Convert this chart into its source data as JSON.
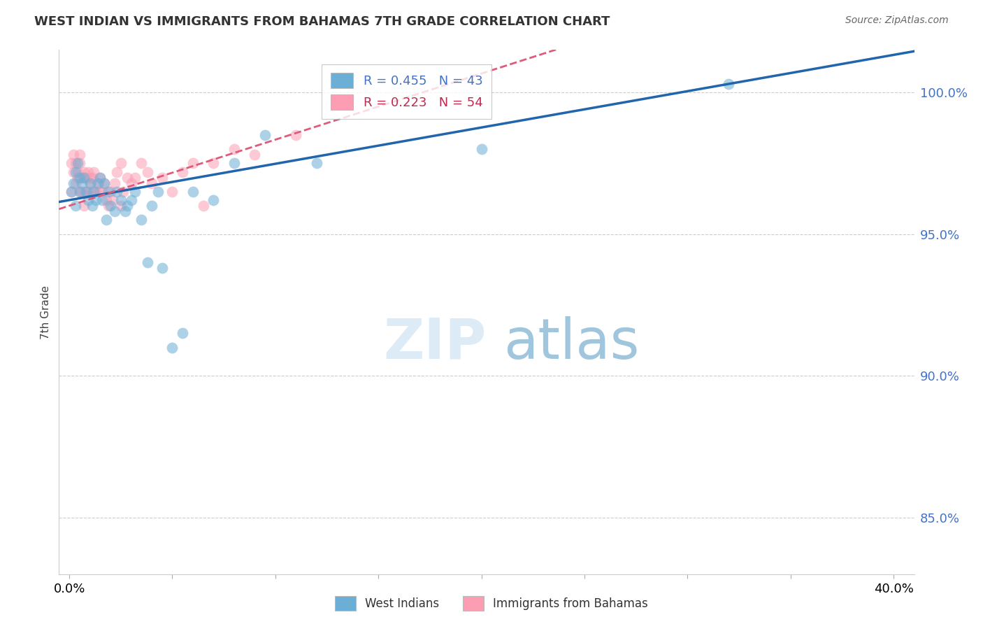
{
  "title": "WEST INDIAN VS IMMIGRANTS FROM BAHAMAS 7TH GRADE CORRELATION CHART",
  "source": "Source: ZipAtlas.com",
  "ylabel": "7th Grade",
  "yticks": [
    85.0,
    90.0,
    95.0,
    100.0
  ],
  "ytick_labels": [
    "85.0%",
    "90.0%",
    "95.0%",
    "100.0%"
  ],
  "xticks": [
    0.0,
    0.05,
    0.1,
    0.15,
    0.2,
    0.25,
    0.3,
    0.35,
    0.4
  ],
  "xlim": [
    -0.005,
    0.41
  ],
  "ylim": [
    83.0,
    101.5
  ],
  "legend_blue_label": "R = 0.455   N = 43",
  "legend_pink_label": "R = 0.223   N = 54",
  "blue_color": "#6baed6",
  "pink_color": "#fc9db3",
  "trendline_blue_color": "#2166ac",
  "trendline_pink_color": "#e05a7a",
  "west_indians_x": [
    0.001,
    0.002,
    0.003,
    0.003,
    0.004,
    0.005,
    0.005,
    0.006,
    0.007,
    0.008,
    0.009,
    0.01,
    0.011,
    0.012,
    0.013,
    0.014,
    0.015,
    0.016,
    0.017,
    0.018,
    0.019,
    0.02,
    0.022,
    0.023,
    0.025,
    0.027,
    0.028,
    0.03,
    0.032,
    0.035,
    0.038,
    0.04,
    0.043,
    0.045,
    0.05,
    0.055,
    0.06,
    0.07,
    0.08,
    0.095,
    0.12,
    0.2,
    0.32
  ],
  "west_indians_y": [
    96.5,
    96.8,
    97.2,
    96.0,
    97.5,
    96.5,
    97.0,
    96.8,
    97.0,
    96.5,
    96.2,
    96.8,
    96.0,
    96.5,
    96.2,
    96.8,
    97.0,
    96.2,
    96.8,
    95.5,
    96.5,
    96.0,
    95.8,
    96.5,
    96.2,
    95.8,
    96.0,
    96.2,
    96.5,
    95.5,
    94.0,
    96.0,
    96.5,
    93.8,
    91.0,
    91.5,
    96.5,
    96.2,
    97.5,
    98.5,
    97.5,
    98.0,
    100.3
  ],
  "bahamas_x": [
    0.001,
    0.001,
    0.002,
    0.002,
    0.003,
    0.003,
    0.004,
    0.004,
    0.005,
    0.005,
    0.005,
    0.006,
    0.006,
    0.007,
    0.007,
    0.008,
    0.008,
    0.009,
    0.009,
    0.01,
    0.01,
    0.011,
    0.011,
    0.012,
    0.013,
    0.014,
    0.015,
    0.015,
    0.016,
    0.017,
    0.018,
    0.019,
    0.02,
    0.021,
    0.022,
    0.023,
    0.025,
    0.025,
    0.026,
    0.028,
    0.03,
    0.032,
    0.035,
    0.038,
    0.04,
    0.045,
    0.05,
    0.055,
    0.06,
    0.065,
    0.07,
    0.08,
    0.09,
    0.11
  ],
  "bahamas_y": [
    96.5,
    97.5,
    97.8,
    97.2,
    97.5,
    96.8,
    97.2,
    97.0,
    97.5,
    97.8,
    96.5,
    97.0,
    96.5,
    97.2,
    96.0,
    97.0,
    96.5,
    97.2,
    96.5,
    97.0,
    96.8,
    97.0,
    96.5,
    97.2,
    96.5,
    96.8,
    96.5,
    97.0,
    96.5,
    96.8,
    96.2,
    96.0,
    96.5,
    96.2,
    96.8,
    97.2,
    96.0,
    97.5,
    96.5,
    97.0,
    96.8,
    97.0,
    97.5,
    97.2,
    96.8,
    97.0,
    96.5,
    97.2,
    97.5,
    96.0,
    97.5,
    98.0,
    97.8,
    98.5
  ]
}
